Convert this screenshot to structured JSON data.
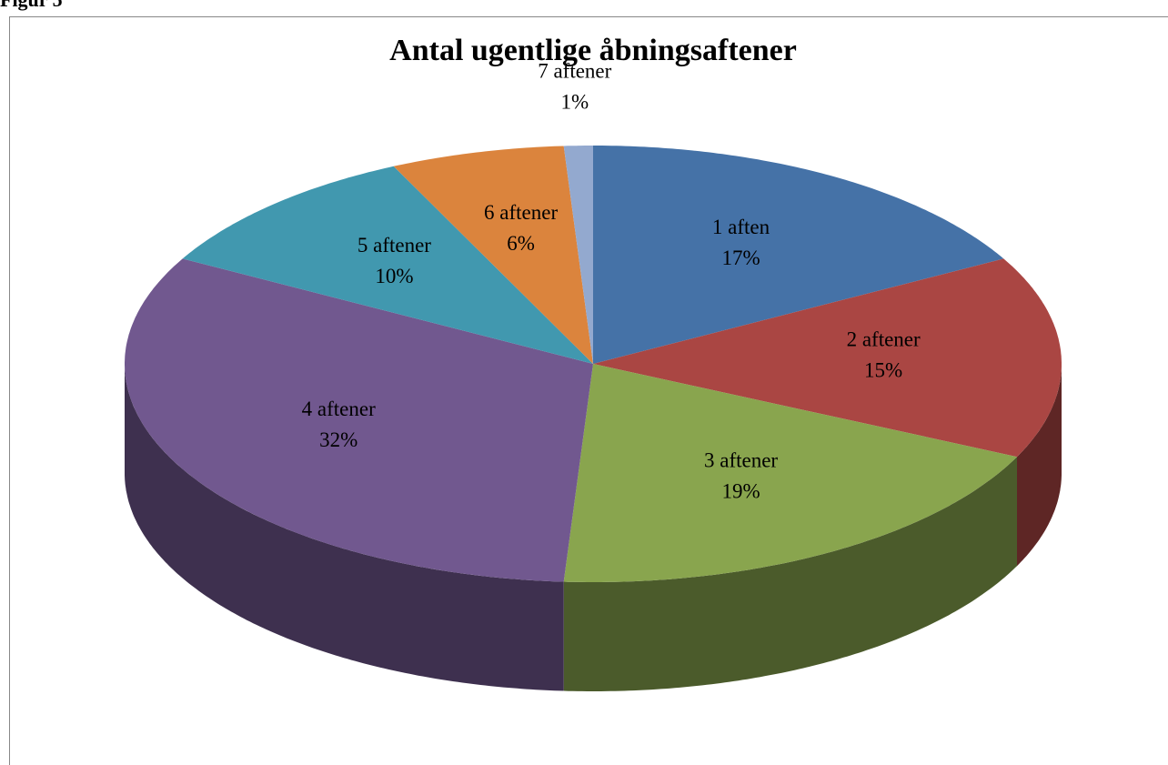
{
  "figure_label": "Figur 5",
  "chart_data": {
    "type": "pie",
    "title": "Antal ugentlige åbningsaftener",
    "categories": [
      "1 aften",
      "2 aftener",
      "3 aftener",
      "4 aftener",
      "5 aftener",
      "6 aftener",
      "7 aftener"
    ],
    "values": [
      17,
      15,
      19,
      32,
      10,
      6,
      1
    ],
    "value_labels": [
      "17%",
      "15%",
      "19%",
      "32%",
      "10%",
      "6%",
      "1%"
    ],
    "colors": [
      "#4572a7",
      "#aa4643",
      "#89a54e",
      "#71588f",
      "#4198af",
      "#db843d",
      "#93a9cf"
    ]
  }
}
